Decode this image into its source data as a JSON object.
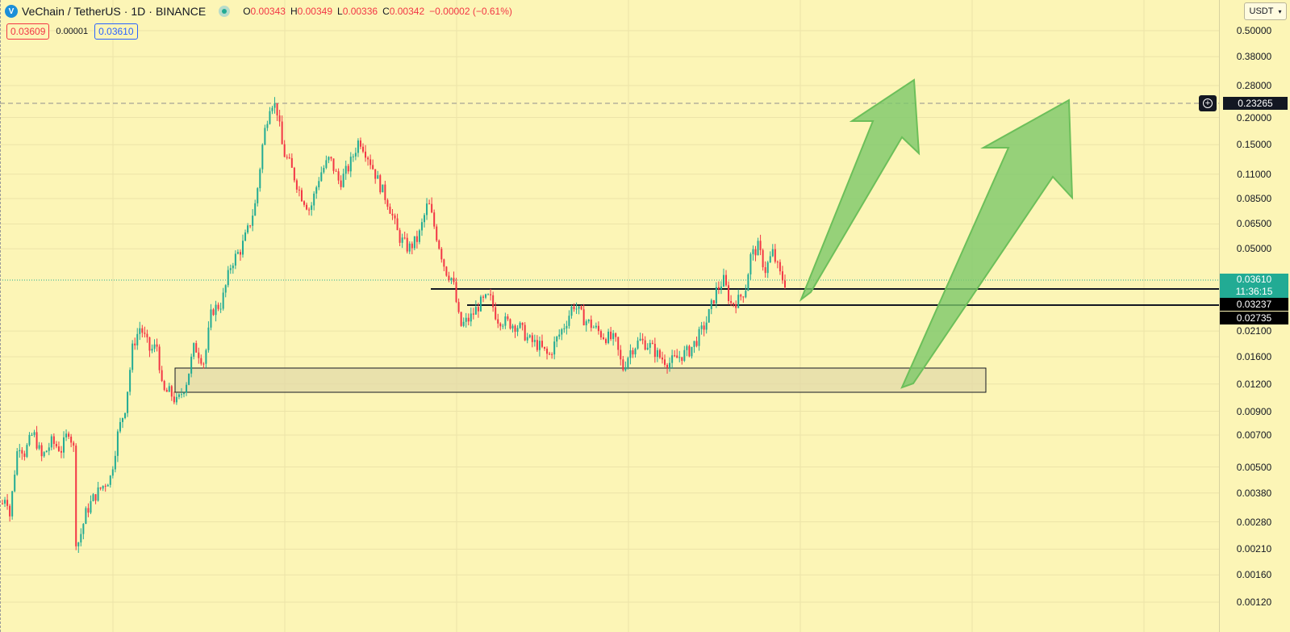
{
  "header": {
    "logo_icon": "vechain-logo-icon",
    "symbol": "VeChain / TetherUS",
    "separator": "·",
    "interval": "1D",
    "exchange": "BINANCE",
    "open_label": "O",
    "open_value": "0.00343",
    "high_label": "H",
    "high_value": "0.00349",
    "low_label": "L",
    "low_value": "0.00336",
    "close_label": "C",
    "close_value": "0.00342",
    "change": "−0.00002 (−0.61%)"
  },
  "quote": {
    "bid": "0.03609",
    "spread": "0.00001",
    "ask": "0.03610"
  },
  "price_scale": {
    "currency": "USDT",
    "ticks": [
      {
        "label": "0.50000",
        "value": 0.5
      },
      {
        "label": "0.38000",
        "value": 0.38
      },
      {
        "label": "0.28000",
        "value": 0.28
      },
      {
        "label": "0.20000",
        "value": 0.2
      },
      {
        "label": "0.15000",
        "value": 0.15
      },
      {
        "label": "0.11000",
        "value": 0.11
      },
      {
        "label": "0.08500",
        "value": 0.085
      },
      {
        "label": "0.06500",
        "value": 0.065
      },
      {
        "label": "0.05000",
        "value": 0.05
      },
      {
        "label": "0.02100",
        "value": 0.021
      },
      {
        "label": "0.01600",
        "value": 0.016
      },
      {
        "label": "0.01200",
        "value": 0.012
      },
      {
        "label": "0.00900",
        "value": 0.009
      },
      {
        "label": "0.00700",
        "value": 0.007
      },
      {
        "label": "0.00500",
        "value": 0.005
      },
      {
        "label": "0.00380",
        "value": 0.0038
      },
      {
        "label": "0.00280",
        "value": 0.0028
      },
      {
        "label": "0.00210",
        "value": 0.0021
      },
      {
        "label": "0.00160",
        "value": 0.0016
      },
      {
        "label": "0.00120",
        "value": 0.0012
      }
    ],
    "target_tag": "0.23265",
    "current_price_tag": "0.03610",
    "countdown": "11:36:15",
    "level1_tag": "0.03237",
    "level2_tag": "0.02735",
    "add_alert_icon": "plus-circle-icon"
  },
  "colors": {
    "background": "#fcf5b6",
    "candle_up": "#22ab94",
    "candle_down": "#f23645",
    "arrow_fill": "#7cc86a",
    "zone_fill": "#e3d9a8"
  },
  "chart_data": {
    "type": "candlestick",
    "symbol": "VeChain / TetherUS",
    "interval": "1D",
    "scale": "log",
    "ylim": [
      0.0011,
      0.55
    ],
    "close_path": [
      [
        0.0,
        0.0034
      ],
      [
        0.3,
        0.0038
      ],
      [
        0.6,
        0.003
      ],
      [
        1.0,
        0.0048
      ],
      [
        1.3,
        0.0065
      ],
      [
        1.8,
        0.0058
      ],
      [
        2.5,
        0.0072
      ],
      [
        3.2,
        0.0055
      ],
      [
        4.0,
        0.0065
      ],
      [
        4.8,
        0.006
      ],
      [
        5.4,
        0.0074
      ],
      [
        5.8,
        0.006
      ],
      [
        6.0,
        0.0021
      ],
      [
        6.4,
        0.0025
      ],
      [
        6.8,
        0.0031
      ],
      [
        7.4,
        0.0036
      ],
      [
        8.0,
        0.004
      ],
      [
        8.8,
        0.0045
      ],
      [
        9.4,
        0.0072
      ],
      [
        10.0,
        0.0095
      ],
      [
        10.6,
        0.018
      ],
      [
        11.2,
        0.022
      ],
      [
        12.0,
        0.017
      ],
      [
        12.6,
        0.018
      ],
      [
        13.0,
        0.011
      ],
      [
        13.6,
        0.011
      ],
      [
        14.2,
        0.0098
      ],
      [
        15.0,
        0.0125
      ],
      [
        15.6,
        0.018
      ],
      [
        16.4,
        0.015
      ],
      [
        17.0,
        0.026
      ],
      [
        17.8,
        0.028
      ],
      [
        18.6,
        0.043
      ],
      [
        19.4,
        0.05
      ],
      [
        20.0,
        0.062
      ],
      [
        20.6,
        0.082
      ],
      [
        21.2,
        0.16
      ],
      [
        21.8,
        0.24
      ],
      [
        22.3,
        0.22
      ],
      [
        22.8,
        0.14
      ],
      [
        23.4,
        0.12
      ],
      [
        24.2,
        0.09
      ],
      [
        25.0,
        0.075
      ],
      [
        25.8,
        0.11
      ],
      [
        26.6,
        0.13
      ],
      [
        27.4,
        0.1
      ],
      [
        28.2,
        0.12
      ],
      [
        29.0,
        0.16
      ],
      [
        29.8,
        0.13
      ],
      [
        30.6,
        0.1
      ],
      [
        31.4,
        0.08
      ],
      [
        32.2,
        0.057
      ],
      [
        33.0,
        0.05
      ],
      [
        33.8,
        0.056
      ],
      [
        34.6,
        0.082
      ],
      [
        35.2,
        0.06
      ],
      [
        36.0,
        0.04
      ],
      [
        36.6,
        0.036
      ],
      [
        37.2,
        0.022
      ],
      [
        38.0,
        0.024
      ],
      [
        38.8,
        0.028
      ],
      [
        39.6,
        0.03
      ],
      [
        40.2,
        0.024
      ],
      [
        41.0,
        0.023
      ],
      [
        42.0,
        0.022
      ],
      [
        42.8,
        0.019
      ],
      [
        43.6,
        0.018
      ],
      [
        44.4,
        0.016
      ],
      [
        45.0,
        0.019
      ],
      [
        45.8,
        0.023
      ],
      [
        46.4,
        0.028
      ],
      [
        47.2,
        0.024
      ],
      [
        48.0,
        0.022
      ],
      [
        48.8,
        0.02
      ],
      [
        49.8,
        0.019
      ],
      [
        50.4,
        0.014
      ],
      [
        51.0,
        0.017
      ],
      [
        51.8,
        0.019
      ],
      [
        52.6,
        0.018
      ],
      [
        53.4,
        0.016
      ],
      [
        54.2,
        0.015
      ],
      [
        55.0,
        0.016
      ],
      [
        55.8,
        0.017
      ],
      [
        56.4,
        0.019
      ],
      [
        57.2,
        0.023
      ],
      [
        58.0,
        0.032
      ],
      [
        58.6,
        0.036
      ],
      [
        59.2,
        0.028
      ],
      [
        59.8,
        0.029
      ],
      [
        60.4,
        0.033
      ],
      [
        60.8,
        0.046
      ],
      [
        61.4,
        0.051
      ],
      [
        62.0,
        0.04
      ],
      [
        62.6,
        0.048
      ],
      [
        63.2,
        0.038
      ],
      [
        63.6,
        0.035
      ]
    ],
    "drawings": {
      "resistance_line_1": 0.03237,
      "resistance_line_2": 0.02735,
      "support_zone": [
        0.0109,
        0.0141
      ],
      "target_price": 0.23265,
      "current_price": 0.0361
    }
  }
}
